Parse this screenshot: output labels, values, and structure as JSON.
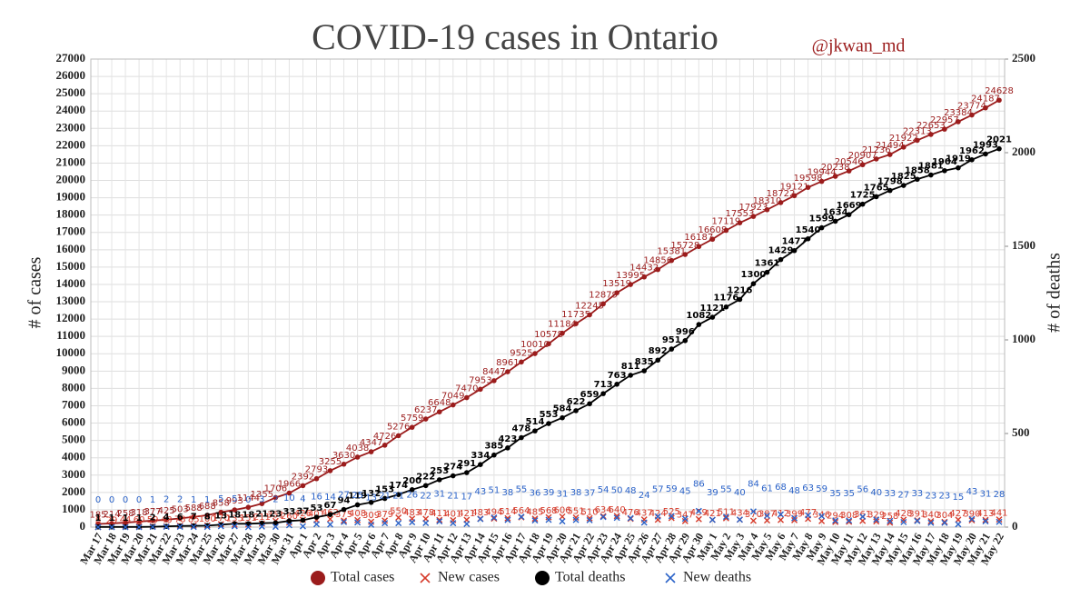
{
  "chart_data": {
    "type": "line",
    "title": "COVID-19 cases in Ontario",
    "annotation": "@jkwan_md",
    "y_label": "# of cases",
    "y2_label": "# of deaths",
    "categories": [
      "Mar 17",
      "Mar 18",
      "Mar 19",
      "Mar 20",
      "Mar 21",
      "Mar 22",
      "Mar 23",
      "Mar 24",
      "Mar 25",
      "Mar 26",
      "Mar 27",
      "Mar 28",
      "Mar 29",
      "Mar 30",
      "Mar 31",
      "Apr 1",
      "Apr 2",
      "Apr 3",
      "Apr 4",
      "Apr 5",
      "Apr 6",
      "Apr 7",
      "Apr 8",
      "Apr 9",
      "Apr 10",
      "Apr 11",
      "Apr 12",
      "Apr 13",
      "Apr 14",
      "Apr 15",
      "Apr 16",
      "Apr 17",
      "Apr 18",
      "Apr 19",
      "Apr 20",
      "Apr 21",
      "Apr 22",
      "Apr 23",
      "Apr 24",
      "Apr 25",
      "Apr 26",
      "Apr 27",
      "Apr 28",
      "Apr 29",
      "Apr 30",
      "May 1",
      "May 2",
      "May 3",
      "May 4",
      "May 5",
      "May 6",
      "May 7",
      "May 8",
      "May 9",
      "May 10",
      "May 11",
      "May 12",
      "May 13",
      "May 14",
      "May 15",
      "May 16",
      "May 17",
      "May 18",
      "May 19",
      "May 20",
      "May 21",
      "May 22"
    ],
    "series": [
      {
        "name": "Total cases",
        "color": "#9b1c1c",
        "marker": "circle",
        "axis": "y",
        "values": [
          185,
          214,
          258,
          318,
          377,
          425,
          503,
          588,
          688,
          858,
          993,
          1144,
          1355,
          1706,
          1966,
          2392,
          2793,
          3255,
          3630,
          4038,
          4347,
          4726,
          5276,
          5759,
          6237,
          6648,
          7049,
          7470,
          7953,
          8447,
          8961,
          9525,
          10010,
          10578,
          11184,
          11735,
          12245,
          12879,
          13519,
          13995,
          14432,
          14856,
          15381,
          15728,
          16187,
          16608,
          17119,
          17553,
          17923,
          18310,
          18722,
          19121,
          19598,
          19944,
          20238,
          20546,
          20907,
          21236,
          21494,
          21922,
          22313,
          22653,
          22957,
          23384,
          23774,
          24187,
          24628
        ]
      },
      {
        "name": "New cases",
        "color": "#d63a2a",
        "marker": "x",
        "axis": "y",
        "values": [
          8,
          29,
          44,
          60,
          59,
          48,
          78,
          85,
          100,
          170,
          135,
          151,
          211,
          351,
          260,
          426,
          401,
          462,
          375,
          408,
          309,
          379,
          550,
          483,
          478,
          411,
          401,
          421,
          483,
          494,
          514,
          564,
          485,
          568,
          606,
          551,
          510,
          634,
          640,
          476,
          437,
          424,
          525,
          347,
          459,
          421,
          511,
          434,
          370,
          387,
          412,
          399,
          477,
          346,
          294,
          308,
          361,
          329,
          258,
          428,
          391,
          340,
          304,
          427,
          390,
          413,
          441
        ]
      },
      {
        "name": "Total deaths",
        "color": "#000000",
        "marker": "circle",
        "axis": "y2",
        "values": [
          1,
          1,
          1,
          1,
          2,
          4,
          6,
          7,
          8,
          13,
          18,
          18,
          21,
          23,
          33,
          37,
          53,
          67,
          94,
          119,
          132,
          153,
          174,
          200,
          222,
          253,
          274,
          291,
          334,
          385,
          423,
          478,
          514,
          553,
          584,
          622,
          659,
          713,
          763,
          811,
          835,
          892,
          951,
          996,
          1082,
          1121,
          1176,
          1216,
          1300,
          1361,
          1429,
          1477,
          1540,
          1599,
          1634,
          1669,
          1725,
          1765,
          1798,
          1825,
          1858,
          1881,
          1904,
          1919,
          1962,
          1993,
          2021
        ]
      },
      {
        "name": "New deaths",
        "color": "#2a62c8",
        "marker": "x",
        "axis": "y2",
        "values": [
          0,
          0,
          0,
          0,
          1,
          2,
          2,
          1,
          1,
          5,
          5,
          0,
          3,
          2,
          10,
          4,
          16,
          14,
          27,
          25,
          13,
          21,
          21,
          26,
          22,
          31,
          21,
          17,
          43,
          51,
          38,
          55,
          36,
          39,
          31,
          38,
          37,
          54,
          50,
          48,
          24,
          57,
          59,
          45,
          86,
          39,
          55,
          40,
          84,
          61,
          68,
          48,
          63,
          59,
          35,
          35,
          56,
          40,
          33,
          27,
          33,
          23,
          23,
          15,
          43,
          31,
          28
        ]
      }
    ],
    "ylim": [
      0,
      27000
    ],
    "yticks": [
      0,
      1000,
      2000,
      3000,
      4000,
      5000,
      6000,
      7000,
      8000,
      9000,
      10000,
      11000,
      12000,
      13000,
      14000,
      15000,
      16000,
      17000,
      18000,
      19000,
      20000,
      21000,
      22000,
      23000,
      24000,
      25000,
      26000,
      27000
    ],
    "y2lim": [
      0,
      2500
    ],
    "y2ticks": [
      0,
      500,
      1000,
      1500,
      2000,
      2500
    ],
    "grid": true,
    "legend": "bottom"
  }
}
